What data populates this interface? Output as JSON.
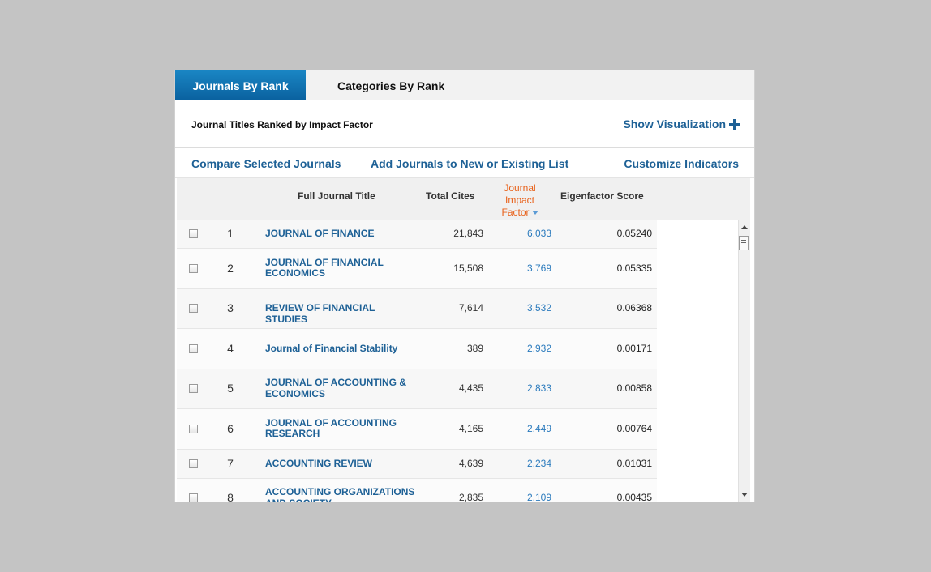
{
  "tabs": [
    {
      "label": "Journals By Rank",
      "active": true
    },
    {
      "label": "Categories By Rank",
      "active": false
    }
  ],
  "subtitle": "Journal Titles Ranked by Impact Factor",
  "show_visualization": "Show Visualization",
  "actions": {
    "compare": "Compare Selected Journals",
    "add_list": "Add Journals to New or Existing List",
    "customize": "Customize Indicators"
  },
  "columns": {
    "title": "Full Journal Title",
    "cites": "Total Cites",
    "jif_line1": "Journal",
    "jif_line2": "Impact",
    "jif_line3": "Factor",
    "eigen": "Eigenfactor Score"
  },
  "rows": [
    {
      "rank": "1",
      "title_line1": "JOURNAL OF FINANCE",
      "title_line2": "",
      "cites": "21,843",
      "jif": "6.033",
      "eigen": "0.05240"
    },
    {
      "rank": "2",
      "title_line1": "JOURNAL OF FINANCIAL",
      "title_line2": "ECONOMICS",
      "cites": "15,508",
      "jif": "3.769",
      "eigen": "0.05335"
    },
    {
      "rank": "3",
      "title_line1": "REVIEW OF FINANCIAL STUDIES",
      "title_line2": "",
      "cites": "7,614",
      "jif": "3.532",
      "eigen": "0.06368"
    },
    {
      "rank": "4",
      "title_line1": "Journal of Financial Stability",
      "title_line2": "",
      "cites": "389",
      "jif": "2.932",
      "eigen": "0.00171"
    },
    {
      "rank": "5",
      "title_line1": "JOURNAL OF ACCOUNTING &",
      "title_line2": "ECONOMICS",
      "cites": "4,435",
      "jif": "2.833",
      "eigen": "0.00858"
    },
    {
      "rank": "6",
      "title_line1": "JOURNAL OF ACCOUNTING",
      "title_line2": "RESEARCH",
      "cites": "4,165",
      "jif": "2.449",
      "eigen": "0.00764"
    },
    {
      "rank": "7",
      "title_line1": "ACCOUNTING REVIEW",
      "title_line2": "",
      "cites": "4,639",
      "jif": "2.234",
      "eigen": "0.01031"
    },
    {
      "rank": "8",
      "title_line1": "ACCOUNTING ORGANIZATIONS",
      "title_line2": "AND SOCIETY",
      "cites": "2,835",
      "jif": "2.109",
      "eigen": "0.00435"
    }
  ],
  "colors": {
    "accent": "#1e6196",
    "tab_active": "#0a62a0",
    "sorted_header": "#e8611a"
  }
}
